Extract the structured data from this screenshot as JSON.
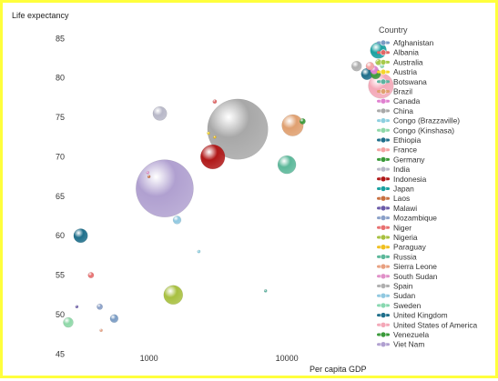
{
  "chart_data": {
    "type": "scatter",
    "title": "",
    "xlabel": "Per capita GDP",
    "ylabel": "Life expectancy",
    "x_scale": "log",
    "xlim": [
      160,
      38000
    ],
    "ylim": [
      44,
      87
    ],
    "x_ticks": [
      {
        "value": 1000,
        "label": "1000"
      },
      {
        "value": 10000,
        "label": "10000"
      }
    ],
    "y_ticks": [
      {
        "value": 45,
        "label": "45"
      },
      {
        "value": 50,
        "label": "50"
      },
      {
        "value": 55,
        "label": "55"
      },
      {
        "value": 60,
        "label": "60"
      },
      {
        "value": 65,
        "label": "65"
      },
      {
        "value": 70,
        "label": "70"
      },
      {
        "value": 75,
        "label": "75"
      },
      {
        "value": 80,
        "label": "80"
      },
      {
        "value": 85,
        "label": "85"
      }
    ],
    "grid": false,
    "legend_title": "Country",
    "legend_position": "right",
    "series": [
      {
        "name": "Afghanistan",
        "color": "#7a9cc4",
        "points": [
          {
            "x": 560,
            "y": 49.5,
            "size": 0.2
          }
        ]
      },
      {
        "name": "Albania",
        "color": "#e06666",
        "points": [
          {
            "x": 3000,
            "y": 77.0,
            "size": 0.05
          }
        ]
      },
      {
        "name": "Australia",
        "color": "#a6c94a",
        "points": [
          {
            "x": 46000,
            "y": 82.0,
            "size": 0.1
          }
        ]
      },
      {
        "name": "Austria",
        "color": "#f5d42a",
        "points": [
          {
            "x": 2700,
            "y": 73.0,
            "size": 0.02
          }
        ]
      },
      {
        "name": "Botswana",
        "color": "#5cb3a0",
        "points": [
          {
            "x": 7000,
            "y": 53.0,
            "size": 0.02
          }
        ]
      },
      {
        "name": "Brazil",
        "color": "#e0a070",
        "points": [
          {
            "x": 11000,
            "y": 74.0,
            "size": 1.4
          }
        ]
      },
      {
        "name": "Canada",
        "color": "#e080d0",
        "points": [
          {
            "x": 43000,
            "y": 81.0,
            "size": 0.2
          }
        ]
      },
      {
        "name": "China",
        "color": "#a8a8a8",
        "points": [
          {
            "x": 4400,
            "y": 73.5,
            "size": 11.0
          }
        ]
      },
      {
        "name": "Congo (Brazzaville)",
        "color": "#8dcfe0",
        "points": [
          {
            "x": 2300,
            "y": 58.0,
            "size": 0.03
          }
        ]
      },
      {
        "name": "Congo (Kinshasa)",
        "color": "#8ed8a8",
        "points": [
          {
            "x": 260,
            "y": 49.0,
            "size": 0.3
          }
        ]
      },
      {
        "name": "Ethiopia",
        "color": "#1f6f8b",
        "points": [
          {
            "x": 320,
            "y": 60.0,
            "size": 0.6
          }
        ]
      },
      {
        "name": "France",
        "color": "#f4a3a3",
        "points": [
          {
            "x": 40000,
            "y": 81.5,
            "size": 0.2
          }
        ]
      },
      {
        "name": "Germany",
        "color": "#3a9a3a",
        "points": [
          {
            "x": 44000,
            "y": 80.5,
            "size": 0.3
          }
        ]
      },
      {
        "name": "India",
        "color": "#b8b8c8",
        "points": [
          {
            "x": 1200,
            "y": 75.5,
            "size": 0.6
          }
        ]
      },
      {
        "name": "Indonesia",
        "color": "#b01818",
        "points": [
          {
            "x": 2900,
            "y": 70.0,
            "size": 1.8
          }
        ]
      },
      {
        "name": "Japan",
        "color": "#1aa0a0",
        "points": [
          {
            "x": 46000,
            "y": 83.5,
            "size": 0.8
          }
        ]
      },
      {
        "name": "Laos",
        "color": "#c87040",
        "points": [
          {
            "x": 1000,
            "y": 67.5,
            "size": 0.01
          }
        ]
      },
      {
        "name": "Malawi",
        "color": "#6a5aa8",
        "points": [
          {
            "x": 300,
            "y": 51.0,
            "size": 0.01
          }
        ]
      },
      {
        "name": "Mozambique",
        "color": "#8aa0c8",
        "points": [
          {
            "x": 440,
            "y": 51.0,
            "size": 0.1
          }
        ]
      },
      {
        "name": "Niger",
        "color": "#e87070",
        "points": [
          {
            "x": 380,
            "y": 55.0,
            "size": 0.1
          }
        ]
      },
      {
        "name": "Nigeria",
        "color": "#a8c040",
        "points": [
          {
            "x": 1500,
            "y": 52.5,
            "size": 1.1
          }
        ]
      },
      {
        "name": "Paraguay",
        "color": "#f0c020",
        "points": [
          {
            "x": 3000,
            "y": 72.5,
            "size": 0.01
          }
        ]
      },
      {
        "name": "Russia",
        "color": "#5cb89a",
        "points": [
          {
            "x": 10000,
            "y": 69.0,
            "size": 1.0
          }
        ]
      },
      {
        "name": "Sierra Leone",
        "color": "#e8a080",
        "points": [
          {
            "x": 450,
            "y": 48.0,
            "size": 0.02
          }
        ]
      },
      {
        "name": "South Sudan",
        "color": "#e090c8",
        "points": [
          {
            "x": 980,
            "y": 68.0,
            "size": 0.01
          }
        ]
      },
      {
        "name": "Spain",
        "color": "#b0b0b0",
        "points": [
          {
            "x": 32000,
            "y": 81.5,
            "size": 0.3
          }
        ]
      },
      {
        "name": "Sudan",
        "color": "#90c8e0",
        "points": [
          {
            "x": 1600,
            "y": 62.0,
            "size": 0.2
          }
        ]
      },
      {
        "name": "Sweden",
        "color": "#88d8b0",
        "points": [
          {
            "x": 49000,
            "y": 81.5,
            "size": 0.05
          }
        ]
      },
      {
        "name": "United Kingdom",
        "color": "#1f6f8b",
        "points": [
          {
            "x": 38000,
            "y": 80.5,
            "size": 0.4
          }
        ]
      },
      {
        "name": "United States of America",
        "color": "#f4a8b8",
        "points": [
          {
            "x": 48000,
            "y": 79.0,
            "size": 1.9
          }
        ]
      },
      {
        "name": "Venezuela",
        "color": "#3a9a3a",
        "points": [
          {
            "x": 13000,
            "y": 74.5,
            "size": 0.1
          }
        ]
      },
      {
        "name": "Viet Nam",
        "color": "#b0a0d0",
        "points": [
          {
            "x": 1300,
            "y": 66.0,
            "size": 10.0
          }
        ]
      }
    ]
  }
}
